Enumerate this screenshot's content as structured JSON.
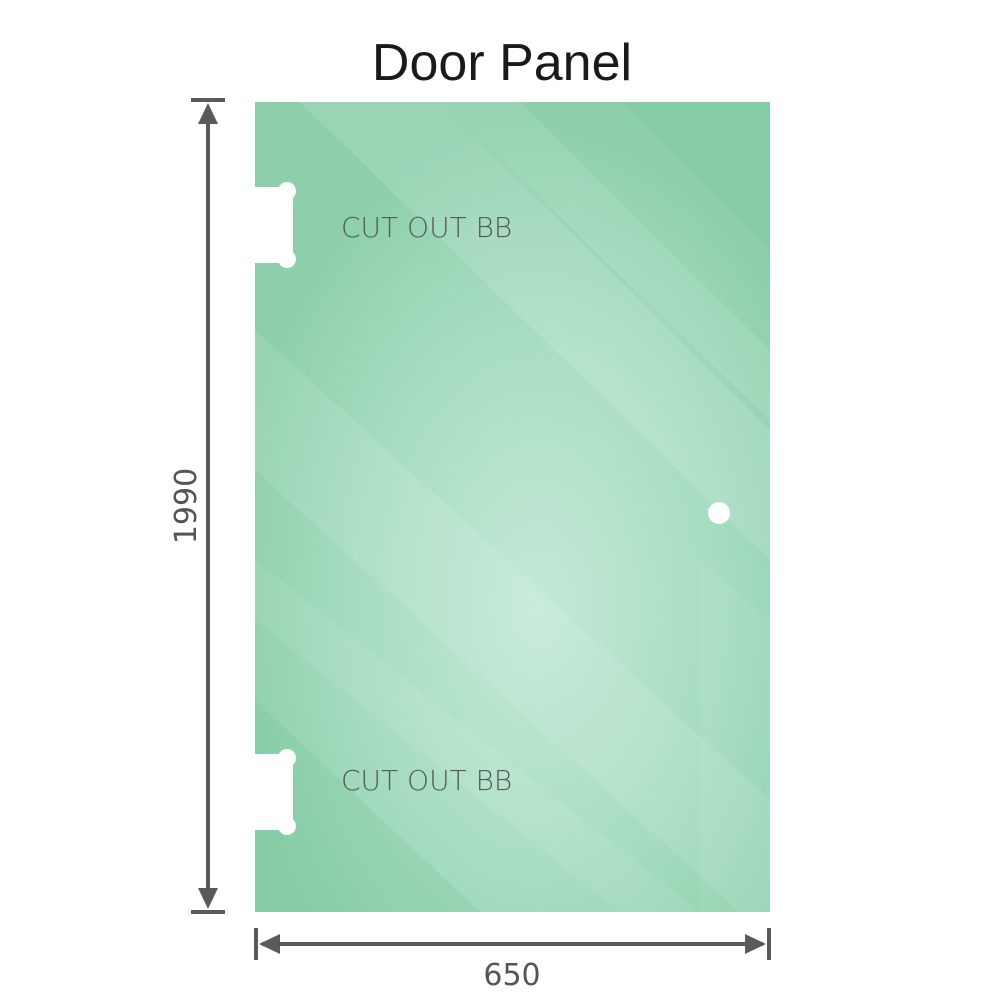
{
  "title": "Door Panel",
  "cutout_top_label": "CUT OUT BB",
  "cutout_bottom_label": "CUT OUT BB",
  "height_dimension": "1990",
  "width_dimension": "650",
  "colors": {
    "glass_base": "#8dcfab",
    "glass_light": "#c2e8d6",
    "dimension_line": "#5a5a5a"
  }
}
